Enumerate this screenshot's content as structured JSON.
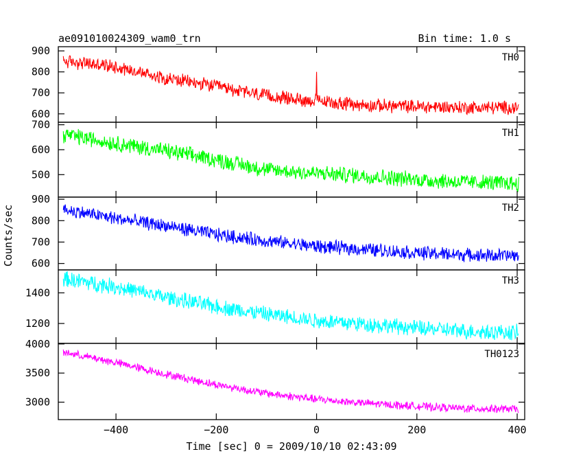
{
  "header": {
    "title": "ae091010024309_wam0_trn",
    "bin_time": "Bin time: 1.0 s"
  },
  "chart_data": {
    "type": "line",
    "title": "ae091010024309_wam0_trn",
    "subtitle": "Bin time: 1.0 s",
    "xlabel": "Time [sec] 0 = 2009/10/10 02:43:09",
    "ylabel": "Counts/sec",
    "xlim": [
      -515,
      415
    ],
    "x_ticks": [
      -400,
      -200,
      0,
      200,
      400
    ],
    "x_tick_labels": [
      "−400",
      "−200",
      "0",
      "200",
      "400"
    ],
    "grid": false,
    "panels": [
      {
        "name": "TH0",
        "color": "#ff0000",
        "ylim": [
          560,
          920
        ],
        "y_ticks": [
          600,
          700,
          800,
          900
        ],
        "trend": {
          "x": [
            -500,
            -400,
            -300,
            -200,
            -100,
            0,
            100,
            200,
            300,
            400
          ],
          "y": [
            850,
            825,
            770,
            730,
            685,
            660,
            640,
            635,
            630,
            630
          ]
        },
        "noise": 28,
        "spike": {
          "x": 0,
          "y": 800
        }
      },
      {
        "name": "TH1",
        "color": "#00ff00",
        "ylim": [
          410,
          710
        ],
        "y_ticks": [
          500,
          600,
          700
        ],
        "trend": {
          "x": [
            -500,
            -400,
            -300,
            -200,
            -100,
            0,
            100,
            200,
            300,
            400
          ],
          "y": [
            660,
            625,
            595,
            560,
            520,
            505,
            495,
            480,
            470,
            465
          ]
        },
        "noise": 28
      },
      {
        "name": "TH2",
        "color": "#0000ff",
        "ylim": [
          570,
          910
        ],
        "y_ticks": [
          600,
          700,
          800,
          900
        ],
        "trend": {
          "x": [
            -500,
            -400,
            -300,
            -200,
            -100,
            0,
            100,
            200,
            300,
            400
          ],
          "y": [
            850,
            810,
            775,
            735,
            705,
            680,
            665,
            650,
            640,
            635
          ]
        },
        "noise": 28
      },
      {
        "name": "TH3",
        "color": "#00ffff",
        "ylim": [
          1070,
          1550
        ],
        "y_ticks": [
          1200,
          1400
        ],
        "trend": {
          "x": [
            -500,
            -400,
            -300,
            -200,
            -100,
            0,
            100,
            200,
            300,
            400
          ],
          "y": [
            1490,
            1440,
            1370,
            1310,
            1260,
            1220,
            1195,
            1170,
            1150,
            1140
          ]
        },
        "noise": 45
      },
      {
        "name": "TH0123",
        "color": "#ff00ff",
        "ylim": [
          2700,
          4010
        ],
        "y_ticks": [
          3000,
          3500,
          4000
        ],
        "trend": {
          "x": [
            -500,
            -400,
            -300,
            -200,
            -100,
            0,
            100,
            200,
            300,
            400
          ],
          "y": [
            3850,
            3680,
            3480,
            3300,
            3150,
            3050,
            2980,
            2930,
            2890,
            2880
          ]
        },
        "noise": 60
      }
    ]
  }
}
